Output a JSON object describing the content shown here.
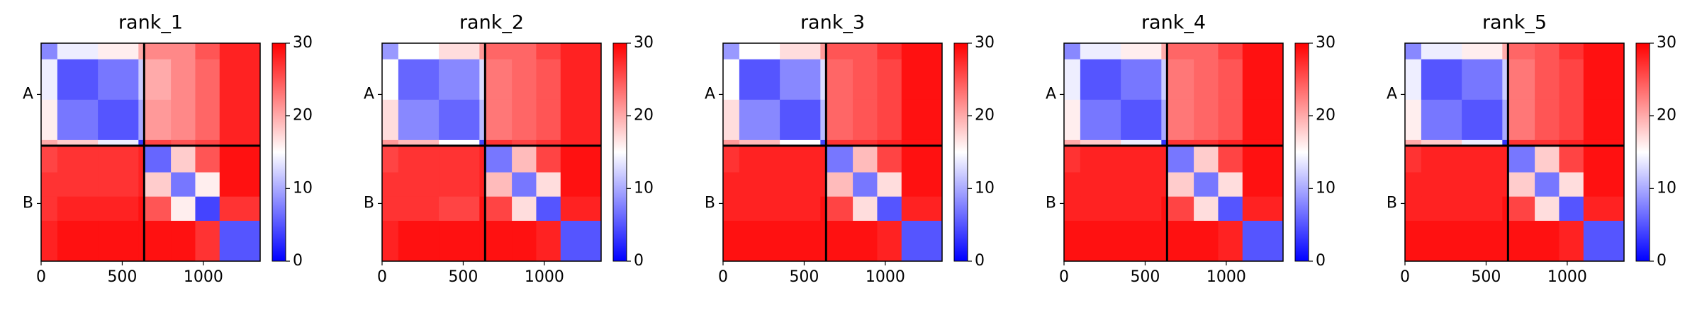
{
  "chart_data": [
    {
      "type": "heatmap",
      "title": "rank_1",
      "xlim": [
        0,
        1350
      ],
      "ylim": [
        1350,
        0
      ],
      "xticks": [
        0,
        500,
        1000
      ],
      "chains": [
        "A",
        "B"
      ],
      "chain_bounds": [
        635
      ],
      "edges": [
        0,
        100,
        350,
        600,
        635,
        800,
        950,
        1100,
        1350
      ],
      "z": [
        [
          8,
          14,
          16,
          20,
          22,
          22,
          25,
          28
        ],
        [
          14,
          5,
          7,
          12,
          20,
          22,
          24,
          28
        ],
        [
          16,
          7,
          5,
          10,
          21,
          22,
          24,
          28
        ],
        [
          20,
          18,
          14,
          3,
          26,
          25,
          26,
          28
        ],
        [
          26,
          27,
          27,
          28,
          6,
          18,
          25,
          29
        ],
        [
          27,
          27,
          27,
          28,
          18,
          7,
          16,
          29
        ],
        [
          27,
          28,
          28,
          29,
          25,
          16,
          4,
          27
        ],
        [
          28,
          29,
          29,
          29,
          29,
          29,
          27,
          5
        ]
      ],
      "clim": [
        0,
        30
      ],
      "cticks": [
        0,
        10,
        20,
        30
      ],
      "colormap": [
        "#0000ff",
        "#ffffff",
        "#ff0000"
      ]
    },
    {
      "type": "heatmap",
      "title": "rank_2",
      "xlim": [
        0,
        1350
      ],
      "ylim": [
        1350,
        0
      ],
      "xticks": [
        0,
        500,
        1000
      ],
      "chains": [
        "A",
        "B"
      ],
      "chain_bounds": [
        635
      ],
      "edges": [
        0,
        100,
        350,
        600,
        635,
        800,
        950,
        1100,
        1350
      ],
      "z": [
        [
          9,
          15,
          17,
          21,
          24,
          24,
          26,
          28
        ],
        [
          15,
          6,
          8,
          13,
          23,
          24,
          25,
          28
        ],
        [
          17,
          8,
          6,
          11,
          23,
          24,
          25,
          28
        ],
        [
          21,
          19,
          15,
          4,
          27,
          26,
          27,
          28
        ],
        [
          26,
          27,
          27,
          28,
          7,
          19,
          26,
          29
        ],
        [
          27,
          27,
          27,
          28,
          19,
          7,
          17,
          29
        ],
        [
          27,
          27,
          26,
          29,
          26,
          17,
          5,
          28
        ],
        [
          28,
          29,
          29,
          29,
          29,
          29,
          28,
          5
        ]
      ],
      "clim": [
        0,
        30
      ],
      "cticks": [
        0,
        10,
        20,
        30
      ],
      "colormap": [
        "#0000ff",
        "#ffffff",
        "#ff0000"
      ]
    },
    {
      "type": "heatmap",
      "title": "rank_3",
      "xlim": [
        0,
        1350
      ],
      "ylim": [
        1350,
        0
      ],
      "xticks": [
        0,
        500,
        1000
      ],
      "chains": [
        "A",
        "B"
      ],
      "chain_bounds": [
        635
      ],
      "edges": [
        0,
        100,
        350,
        600,
        635,
        800,
        950,
        1100,
        1350
      ],
      "z": [
        [
          9,
          15,
          17,
          21,
          25,
          25,
          27,
          29
        ],
        [
          15,
          5,
          8,
          13,
          24,
          25,
          26,
          29
        ],
        [
          17,
          8,
          5,
          11,
          24,
          25,
          26,
          29
        ],
        [
          21,
          19,
          15,
          4,
          27,
          27,
          28,
          29
        ],
        [
          27,
          28,
          28,
          28,
          7,
          19,
          26,
          29
        ],
        [
          28,
          28,
          28,
          28,
          19,
          7,
          17,
          29
        ],
        [
          28,
          28,
          28,
          29,
          26,
          17,
          5,
          28
        ],
        [
          29,
          29,
          29,
          29,
          29,
          29,
          28,
          5
        ]
      ],
      "clim": [
        0,
        30
      ],
      "cticks": [
        0,
        10,
        20,
        30
      ],
      "colormap": [
        "#0000ff",
        "#ffffff",
        "#ff0000"
      ]
    },
    {
      "type": "heatmap",
      "title": "rank_4",
      "xlim": [
        0,
        1350
      ],
      "ylim": [
        1350,
        0
      ],
      "xticks": [
        0,
        500,
        1000
      ],
      "chains": [
        "A",
        "B"
      ],
      "chain_bounds": [
        635
      ],
      "edges": [
        0,
        100,
        350,
        600,
        635,
        800,
        950,
        1100,
        1350
      ],
      "z": [
        [
          8,
          14,
          16,
          20,
          24,
          24,
          26,
          29
        ],
        [
          14,
          5,
          7,
          12,
          23,
          24,
          25,
          29
        ],
        [
          16,
          7,
          5,
          10,
          23,
          24,
          25,
          29
        ],
        [
          20,
          18,
          14,
          3,
          27,
          27,
          28,
          29
        ],
        [
          27,
          28,
          28,
          28,
          7,
          18,
          26,
          29
        ],
        [
          28,
          28,
          28,
          28,
          18,
          7,
          17,
          29
        ],
        [
          28,
          28,
          28,
          29,
          26,
          17,
          5,
          28
        ],
        [
          29,
          29,
          29,
          29,
          29,
          29,
          28,
          5
        ]
      ],
      "clim": [
        0,
        30
      ],
      "cticks": [
        0,
        10,
        20,
        30
      ],
      "colormap": [
        "#0000ff",
        "#ffffff",
        "#ff0000"
      ]
    },
    {
      "type": "heatmap",
      "title": "rank_5",
      "xlim": [
        0,
        1350
      ],
      "ylim": [
        1350,
        0
      ],
      "xticks": [
        0,
        500,
        1000
      ],
      "chains": [
        "A",
        "B"
      ],
      "chain_bounds": [
        635
      ],
      "edges": [
        0,
        100,
        350,
        600,
        635,
        800,
        950,
        1100,
        1350
      ],
      "z": [
        [
          8,
          14,
          16,
          20,
          24,
          25,
          27,
          29
        ],
        [
          14,
          5,
          7,
          12,
          23,
          25,
          26,
          29
        ],
        [
          16,
          7,
          5,
          10,
          23,
          25,
          26,
          29
        ],
        [
          20,
          18,
          14,
          3,
          27,
          27,
          28,
          29
        ],
        [
          27,
          28,
          28,
          28,
          7,
          18,
          26,
          29
        ],
        [
          28,
          28,
          28,
          28,
          18,
          7,
          17,
          29
        ],
        [
          28,
          28,
          28,
          29,
          26,
          17,
          5,
          28
        ],
        [
          29,
          29,
          29,
          29,
          29,
          29,
          28,
          5
        ]
      ],
      "clim": [
        0,
        30
      ],
      "cticks": [
        0,
        10,
        20,
        30
      ],
      "colormap": [
        "#0000ff",
        "#ffffff",
        "#ff0000"
      ]
    }
  ]
}
